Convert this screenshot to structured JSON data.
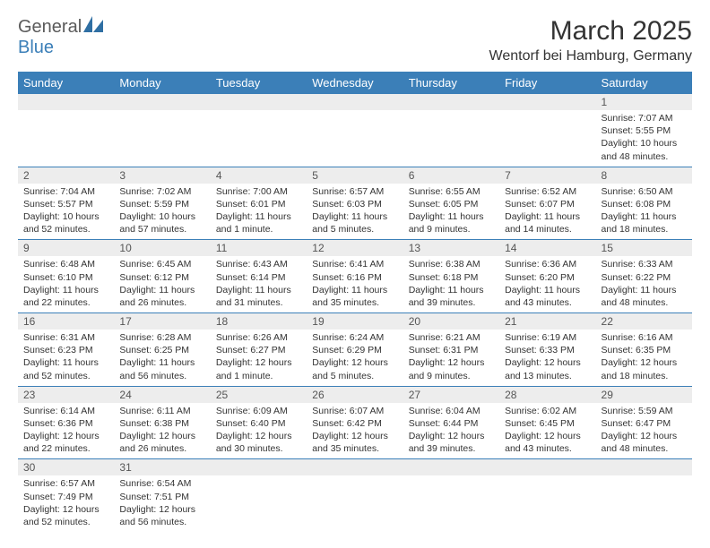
{
  "brand": {
    "part1": "General",
    "part2": "Blue"
  },
  "title": "March 2025",
  "location": "Wentorf bei Hamburg, Germany",
  "day_headers": [
    "Sunday",
    "Monday",
    "Tuesday",
    "Wednesday",
    "Thursday",
    "Friday",
    "Saturday"
  ],
  "colors": {
    "header_bg": "#3b7fb8",
    "header_text": "#ffffff",
    "daynum_bg": "#ededed",
    "border": "#3b7fb8",
    "text": "#333333",
    "logo_gray": "#5a5a5a",
    "logo_blue": "#3b7fb8"
  },
  "weeks": [
    [
      {
        "day": "",
        "lines": []
      },
      {
        "day": "",
        "lines": []
      },
      {
        "day": "",
        "lines": []
      },
      {
        "day": "",
        "lines": []
      },
      {
        "day": "",
        "lines": []
      },
      {
        "day": "",
        "lines": []
      },
      {
        "day": "1",
        "lines": [
          "Sunrise: 7:07 AM",
          "Sunset: 5:55 PM",
          "Daylight: 10 hours and 48 minutes."
        ]
      }
    ],
    [
      {
        "day": "2",
        "lines": [
          "Sunrise: 7:04 AM",
          "Sunset: 5:57 PM",
          "Daylight: 10 hours and 52 minutes."
        ]
      },
      {
        "day": "3",
        "lines": [
          "Sunrise: 7:02 AM",
          "Sunset: 5:59 PM",
          "Daylight: 10 hours and 57 minutes."
        ]
      },
      {
        "day": "4",
        "lines": [
          "Sunrise: 7:00 AM",
          "Sunset: 6:01 PM",
          "Daylight: 11 hours and 1 minute."
        ]
      },
      {
        "day": "5",
        "lines": [
          "Sunrise: 6:57 AM",
          "Sunset: 6:03 PM",
          "Daylight: 11 hours and 5 minutes."
        ]
      },
      {
        "day": "6",
        "lines": [
          "Sunrise: 6:55 AM",
          "Sunset: 6:05 PM",
          "Daylight: 11 hours and 9 minutes."
        ]
      },
      {
        "day": "7",
        "lines": [
          "Sunrise: 6:52 AM",
          "Sunset: 6:07 PM",
          "Daylight: 11 hours and 14 minutes."
        ]
      },
      {
        "day": "8",
        "lines": [
          "Sunrise: 6:50 AM",
          "Sunset: 6:08 PM",
          "Daylight: 11 hours and 18 minutes."
        ]
      }
    ],
    [
      {
        "day": "9",
        "lines": [
          "Sunrise: 6:48 AM",
          "Sunset: 6:10 PM",
          "Daylight: 11 hours and 22 minutes."
        ]
      },
      {
        "day": "10",
        "lines": [
          "Sunrise: 6:45 AM",
          "Sunset: 6:12 PM",
          "Daylight: 11 hours and 26 minutes."
        ]
      },
      {
        "day": "11",
        "lines": [
          "Sunrise: 6:43 AM",
          "Sunset: 6:14 PM",
          "Daylight: 11 hours and 31 minutes."
        ]
      },
      {
        "day": "12",
        "lines": [
          "Sunrise: 6:41 AM",
          "Sunset: 6:16 PM",
          "Daylight: 11 hours and 35 minutes."
        ]
      },
      {
        "day": "13",
        "lines": [
          "Sunrise: 6:38 AM",
          "Sunset: 6:18 PM",
          "Daylight: 11 hours and 39 minutes."
        ]
      },
      {
        "day": "14",
        "lines": [
          "Sunrise: 6:36 AM",
          "Sunset: 6:20 PM",
          "Daylight: 11 hours and 43 minutes."
        ]
      },
      {
        "day": "15",
        "lines": [
          "Sunrise: 6:33 AM",
          "Sunset: 6:22 PM",
          "Daylight: 11 hours and 48 minutes."
        ]
      }
    ],
    [
      {
        "day": "16",
        "lines": [
          "Sunrise: 6:31 AM",
          "Sunset: 6:23 PM",
          "Daylight: 11 hours and 52 minutes."
        ]
      },
      {
        "day": "17",
        "lines": [
          "Sunrise: 6:28 AM",
          "Sunset: 6:25 PM",
          "Daylight: 11 hours and 56 minutes."
        ]
      },
      {
        "day": "18",
        "lines": [
          "Sunrise: 6:26 AM",
          "Sunset: 6:27 PM",
          "Daylight: 12 hours and 1 minute."
        ]
      },
      {
        "day": "19",
        "lines": [
          "Sunrise: 6:24 AM",
          "Sunset: 6:29 PM",
          "Daylight: 12 hours and 5 minutes."
        ]
      },
      {
        "day": "20",
        "lines": [
          "Sunrise: 6:21 AM",
          "Sunset: 6:31 PM",
          "Daylight: 12 hours and 9 minutes."
        ]
      },
      {
        "day": "21",
        "lines": [
          "Sunrise: 6:19 AM",
          "Sunset: 6:33 PM",
          "Daylight: 12 hours and 13 minutes."
        ]
      },
      {
        "day": "22",
        "lines": [
          "Sunrise: 6:16 AM",
          "Sunset: 6:35 PM",
          "Daylight: 12 hours and 18 minutes."
        ]
      }
    ],
    [
      {
        "day": "23",
        "lines": [
          "Sunrise: 6:14 AM",
          "Sunset: 6:36 PM",
          "Daylight: 12 hours and 22 minutes."
        ]
      },
      {
        "day": "24",
        "lines": [
          "Sunrise: 6:11 AM",
          "Sunset: 6:38 PM",
          "Daylight: 12 hours and 26 minutes."
        ]
      },
      {
        "day": "25",
        "lines": [
          "Sunrise: 6:09 AM",
          "Sunset: 6:40 PM",
          "Daylight: 12 hours and 30 minutes."
        ]
      },
      {
        "day": "26",
        "lines": [
          "Sunrise: 6:07 AM",
          "Sunset: 6:42 PM",
          "Daylight: 12 hours and 35 minutes."
        ]
      },
      {
        "day": "27",
        "lines": [
          "Sunrise: 6:04 AM",
          "Sunset: 6:44 PM",
          "Daylight: 12 hours and 39 minutes."
        ]
      },
      {
        "day": "28",
        "lines": [
          "Sunrise: 6:02 AM",
          "Sunset: 6:45 PM",
          "Daylight: 12 hours and 43 minutes."
        ]
      },
      {
        "day": "29",
        "lines": [
          "Sunrise: 5:59 AM",
          "Sunset: 6:47 PM",
          "Daylight: 12 hours and 48 minutes."
        ]
      }
    ],
    [
      {
        "day": "30",
        "lines": [
          "Sunrise: 6:57 AM",
          "Sunset: 7:49 PM",
          "Daylight: 12 hours and 52 minutes."
        ]
      },
      {
        "day": "31",
        "lines": [
          "Sunrise: 6:54 AM",
          "Sunset: 7:51 PM",
          "Daylight: 12 hours and 56 minutes."
        ]
      },
      {
        "day": "",
        "lines": []
      },
      {
        "day": "",
        "lines": []
      },
      {
        "day": "",
        "lines": []
      },
      {
        "day": "",
        "lines": []
      },
      {
        "day": "",
        "lines": []
      }
    ]
  ]
}
